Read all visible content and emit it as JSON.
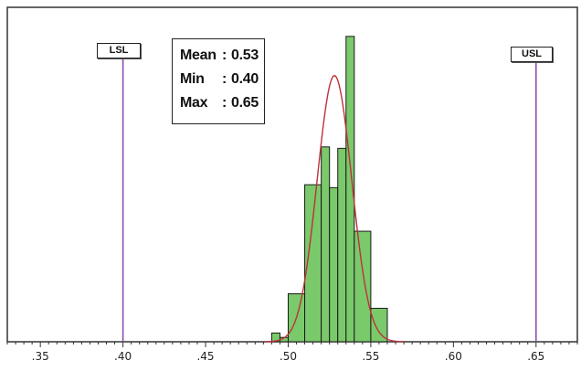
{
  "chart_data": {
    "type": "bar",
    "subtype": "histogram-with-normal-curve",
    "x_ticks": [
      ".35",
      ".40",
      ".45",
      ".50",
      ".55",
      ".60",
      ".65"
    ],
    "x_tick_values": [
      0.35,
      0.4,
      0.45,
      0.5,
      0.55,
      0.6,
      0.65
    ],
    "xlim": [
      0.33,
      0.675
    ],
    "minor_tick_step": 0.005,
    "bins": [
      {
        "x0": 0.49,
        "x1": 0.495,
        "value": 0.6
      },
      {
        "x0": 0.495,
        "x1": 0.5,
        "value": 0.3
      },
      {
        "x0": 0.5,
        "x1": 0.51,
        "value": 3.3
      },
      {
        "x0": 0.51,
        "x1": 0.52,
        "value": 10.8
      },
      {
        "x0": 0.52,
        "x1": 0.525,
        "value": 13.4
      },
      {
        "x0": 0.525,
        "x1": 0.53,
        "value": 10.6
      },
      {
        "x0": 0.53,
        "x1": 0.535,
        "value": 13.3
      },
      {
        "x0": 0.535,
        "x1": 0.54,
        "value": 21.0
      },
      {
        "x0": 0.54,
        "x1": 0.55,
        "value": 7.6
      },
      {
        "x0": 0.55,
        "x1": 0.56,
        "value": 2.3
      }
    ],
    "ylim": [
      0,
      23
    ],
    "normal_curve": {
      "mean": 0.528,
      "sd": 0.0105,
      "peak": 18.3,
      "color": "#c0303a"
    },
    "limits": [
      {
        "label": "LSL",
        "x": 0.4,
        "color": "#8a4fb5"
      },
      {
        "label": "USL",
        "x": 0.65,
        "color": "#8a4fb5"
      }
    ],
    "stats": [
      {
        "label": "Mean",
        "value": "0.53"
      },
      {
        "label": "Min",
        "value": "0.40"
      },
      {
        "label": "Max",
        "value": "0.65"
      }
    ],
    "bar_color": "#7ac96a",
    "grid": false
  }
}
